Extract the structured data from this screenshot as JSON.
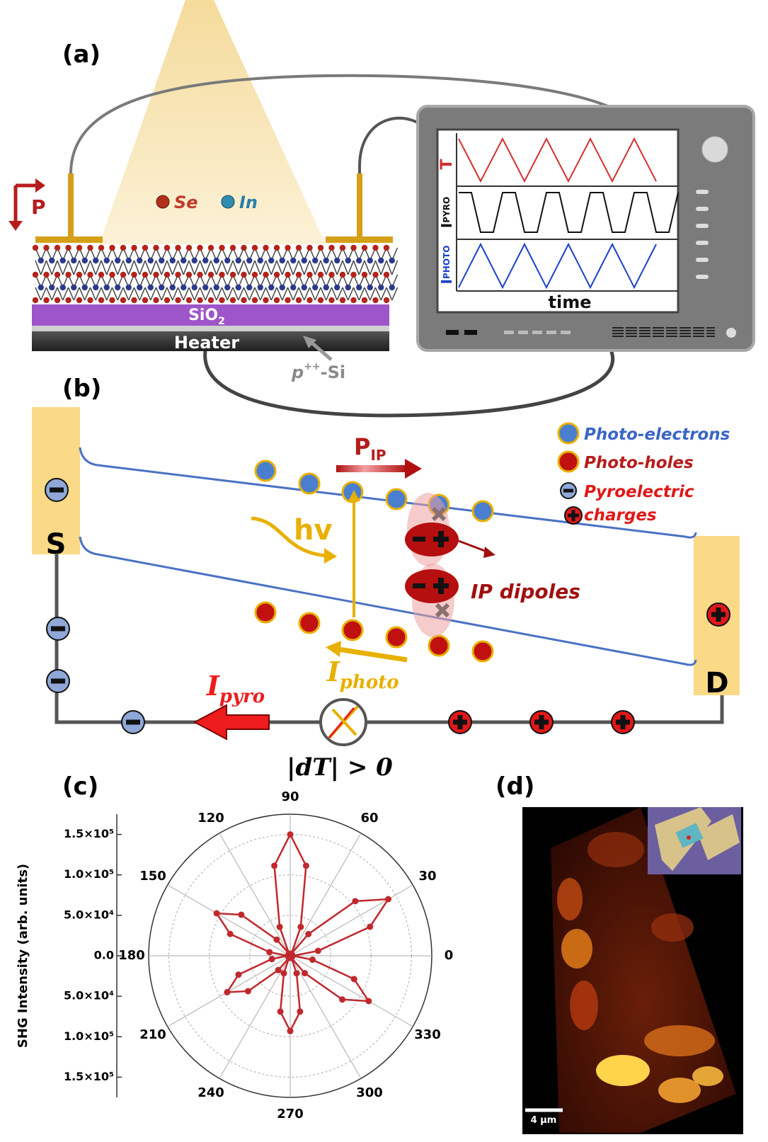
{
  "panel_a": {
    "label": "(a)",
    "polarization": "P",
    "legend": [
      "Se",
      "In"
    ],
    "substrate": "SiO",
    "substrate_subscript": "2",
    "heater": "Heater",
    "doping": {
      "base": "p",
      "superscript": "++",
      "suffix": "-Si"
    },
    "oscilloscope": {
      "traces": [
        {
          "label": "T"
        },
        {
          "label": "I",
          "subscript": "PYRO"
        },
        {
          "label": "I",
          "subscript": "PHOTO"
        }
      ],
      "x_label": "time"
    }
  },
  "panel_b": {
    "label": "(b)",
    "legend": [
      "Photo-electrons",
      "Photo-holes",
      "Pyroelectric",
      "charges"
    ],
    "source": "S",
    "drain": "D",
    "polarization": "P",
    "polarization_subscript": "IP",
    "photon": "hv",
    "dipoles": "IP dipoles",
    "pyro_current": {
      "base": "I",
      "subscript": "pyro"
    },
    "photo_current": {
      "base": "I",
      "subscript": "photo"
    },
    "condition": "|dT| > 0"
  },
  "panel_c": {
    "label": "(c)",
    "chart_data": {
      "type": "polar",
      "y_label": "SHG Intensity (arb. units)",
      "angles": [
        0,
        10,
        20,
        30,
        40,
        50,
        60,
        70,
        80,
        90,
        100,
        110,
        120,
        130,
        140,
        150,
        160,
        170,
        180,
        190,
        200,
        210,
        220,
        230,
        240,
        250,
        260,
        270,
        280,
        290,
        300,
        310,
        320,
        330,
        340,
        350
      ],
      "values": [
        3000,
        35000,
        105000,
        140000,
        105000,
        35000,
        3000,
        38000,
        113000,
        150000,
        113000,
        38000,
        3000,
        26000,
        79000,
        105000,
        79000,
        26000,
        3000,
        23000,
        68000,
        90000,
        68000,
        23000,
        3000,
        23000,
        70000,
        93000,
        70000,
        23000,
        3000,
        28000,
        84000,
        112000,
        84000,
        28000
      ],
      "color": "#c0282d",
      "rlim": [
        0,
        175000
      ],
      "rticks": [
        {
          "value": 0,
          "label": "0.0"
        },
        {
          "value": 50000,
          "label": "5.0×10⁴"
        },
        {
          "value": 100000,
          "label": "1.0×10⁵"
        },
        {
          "value": 150000,
          "label": "1.5×10⁵"
        }
      ],
      "angle_ticks": [
        0,
        30,
        60,
        90,
        120,
        150,
        180,
        210,
        240,
        270,
        300,
        330
      ],
      "grid": true
    }
  },
  "panel_d": {
    "label": "(d)",
    "scale_bar": "4 μm"
  }
}
